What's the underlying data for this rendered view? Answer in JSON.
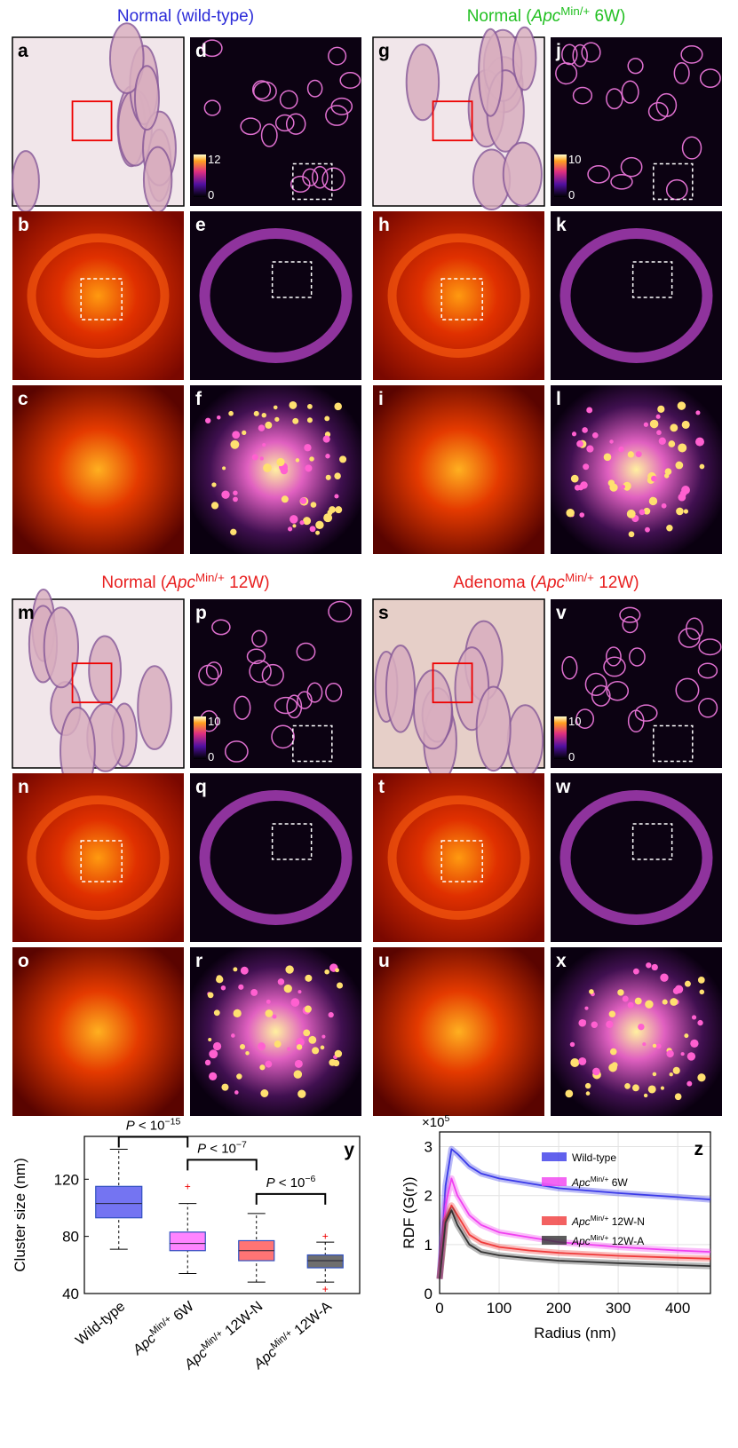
{
  "groups": [
    {
      "title": [
        {
          "t": "Normal (wild-type)"
        }
      ],
      "color": "#2a2ad8",
      "panels": [
        {
          "label": "a"
        },
        {
          "label": "b"
        },
        {
          "label": "c"
        },
        {
          "label": "d",
          "colorbar": [
            12,
            0
          ]
        },
        {
          "label": "e"
        },
        {
          "label": "f"
        }
      ]
    },
    {
      "title": [
        {
          "t": "Normal ("
        },
        {
          "t": "Apc",
          "i": true
        },
        {
          "t": "Min/+",
          "sup": true
        },
        {
          "t": " 6W)"
        }
      ],
      "color": "#22c022",
      "panels": [
        {
          "label": "g"
        },
        {
          "label": "h"
        },
        {
          "label": "i"
        },
        {
          "label": "j",
          "colorbar": [
            10,
            0
          ]
        },
        {
          "label": "k"
        },
        {
          "label": "l"
        }
      ]
    },
    {
      "title": [
        {
          "t": "Normal ("
        },
        {
          "t": "Apc",
          "i": true
        },
        {
          "t": "Min/+",
          "sup": true
        },
        {
          "t": " 12W)"
        }
      ],
      "color": "#e82020",
      "panels": [
        {
          "label": "m"
        },
        {
          "label": "n"
        },
        {
          "label": "o"
        },
        {
          "label": "p",
          "colorbar": [
            10,
            0
          ]
        },
        {
          "label": "q"
        },
        {
          "label": "r"
        }
      ]
    },
    {
      "title": [
        {
          "t": "Adenoma ("
        },
        {
          "t": "Apc",
          "i": true
        },
        {
          "t": "Min/+",
          "sup": true
        },
        {
          "t": " 12W)"
        }
      ],
      "color": "#e82020",
      "panels": [
        {
          "label": "s"
        },
        {
          "label": "t"
        },
        {
          "label": "u"
        },
        {
          "label": "v",
          "colorbar": [
            10,
            0
          ]
        },
        {
          "label": "w"
        },
        {
          "label": "x"
        }
      ]
    }
  ],
  "chart_data": [
    {
      "type": "box",
      "panel_label": "y",
      "ylabel": "Cluster size (nm)",
      "ylim": [
        40,
        150
      ],
      "yticks": [
        40,
        80,
        120
      ],
      "categories": [
        [
          {
            "t": "Wild-type"
          }
        ],
        [
          {
            "t": "Apc",
            "i": true
          },
          {
            "t": "Min/+",
            "sup": true
          },
          {
            "t": " 6W"
          }
        ],
        [
          {
            "t": "Apc",
            "i": true
          },
          {
            "t": "Min/+",
            "sup": true
          },
          {
            "t": " 12W-N"
          }
        ],
        [
          {
            "t": "Apc",
            "i": true
          },
          {
            "t": "Min/+",
            "sup": true
          },
          {
            "t": " 12W-A"
          }
        ]
      ],
      "colors": [
        "#7474f2",
        "#ff84ff",
        "#ff7474",
        "#6e6e6e"
      ],
      "boxes": [
        {
          "low": 71,
          "q1": 93,
          "median": 103,
          "q3": 115,
          "high": 141,
          "outliers": []
        },
        {
          "low": 54,
          "q1": 70,
          "median": 75,
          "q3": 83,
          "high": 103,
          "outliers": [
            115
          ]
        },
        {
          "low": 48,
          "q1": 63,
          "median": 70,
          "q3": 77,
          "high": 96,
          "outliers": []
        },
        {
          "low": 48,
          "q1": 58,
          "median": 63,
          "q3": 67,
          "high": 76,
          "outliers": [
            80,
            43
          ]
        }
      ],
      "annotations": [
        {
          "from": 0,
          "to": 1,
          "text": [
            {
              "t": "P",
              "i": true
            },
            {
              "t": " < 10"
            },
            {
              "t": "−15",
              "sup": true
            }
          ]
        },
        {
          "from": 1,
          "to": 2,
          "text": [
            {
              "t": "P",
              "i": true
            },
            {
              "t": " < 10"
            },
            {
              "t": "−7",
              "sup": true
            }
          ]
        },
        {
          "from": 2,
          "to": 3,
          "text": [
            {
              "t": "P",
              "i": true
            },
            {
              "t": " < 10"
            },
            {
              "t": "−6",
              "sup": true
            }
          ]
        }
      ]
    },
    {
      "type": "line",
      "panel_label": "z",
      "ylabel": "RDF (G(r))",
      "xlabel": "Radius (nm)",
      "multiplier": [
        {
          "t": "×10"
        },
        {
          "t": "5",
          "sup": true
        }
      ],
      "xlim": [
        0,
        455
      ],
      "xticks": [
        0,
        100,
        200,
        300,
        400
      ],
      "ylim": [
        0,
        3.3
      ],
      "yticks": [
        0,
        1,
        2,
        3
      ],
      "grid": true,
      "x": [
        0,
        10,
        20,
        30,
        50,
        70,
        100,
        150,
        200,
        300,
        400,
        455
      ],
      "series": [
        {
          "name": [
            {
              "t": "Wild-type"
            }
          ],
          "color": "#3a3ae8",
          "values": [
            0.3,
            2.2,
            2.95,
            2.85,
            2.6,
            2.45,
            2.35,
            2.25,
            2.15,
            2.05,
            1.97,
            1.92
          ]
        },
        {
          "name": [
            {
              "t": "Apc",
              "i": true
            },
            {
              "t": "Min/+",
              "sup": true
            },
            {
              "t": " 6W"
            }
          ],
          "color": "#f040f0",
          "values": [
            0.3,
            1.8,
            2.35,
            2.0,
            1.6,
            1.4,
            1.25,
            1.15,
            1.05,
            0.95,
            0.88,
            0.85
          ]
        },
        {
          "name": [
            {
              "t": "Apc",
              "i": true
            },
            {
              "t": "Min/+",
              "sup": true
            },
            {
              "t": " 12W-N"
            }
          ],
          "color": "#f03a3a",
          "values": [
            0.3,
            1.5,
            1.8,
            1.6,
            1.2,
            1.05,
            0.95,
            0.88,
            0.83,
            0.77,
            0.73,
            0.71
          ]
        },
        {
          "name": [
            {
              "t": "Apc",
              "i": true
            },
            {
              "t": "Min/+",
              "sup": true
            },
            {
              "t": " 12W-A"
            }
          ],
          "color": "#333333",
          "values": [
            0.3,
            1.45,
            1.7,
            1.4,
            1.0,
            0.85,
            0.78,
            0.72,
            0.67,
            0.62,
            0.58,
            0.56
          ]
        }
      ]
    }
  ]
}
